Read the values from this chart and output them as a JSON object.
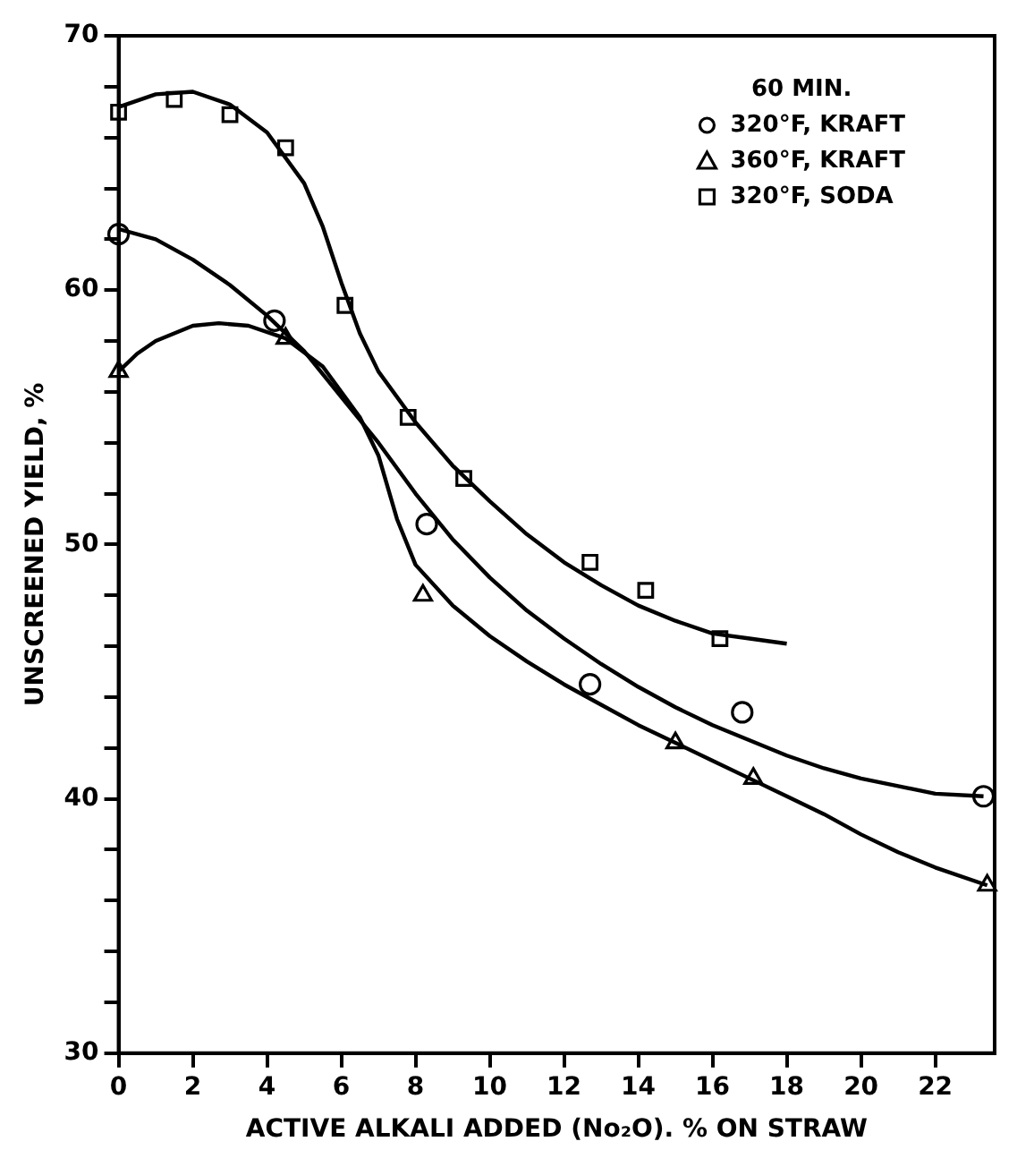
{
  "chart_data": {
    "type": "scatter",
    "xlabel": "ACTIVE ALKALI ADDED (No₂O). % ON STRAW",
    "ylabel": "UNSCREENED YIELD, %",
    "legend_title": "60 MIN.",
    "legend": "top right",
    "grid": false,
    "xlim": [
      0,
      23.6
    ],
    "xticks": [
      0,
      2,
      4,
      6,
      8,
      10,
      12,
      14,
      16,
      18,
      20,
      22
    ],
    "ylim": [
      30,
      70
    ],
    "yticks": [
      30,
      {
        "value": 32,
        "label": null
      },
      {
        "value": 34,
        "label": null
      },
      {
        "value": 36,
        "label": null
      },
      {
        "value": 38,
        "label": null
      },
      40,
      {
        "value": 42,
        "label": null
      },
      {
        "value": 44,
        "label": null
      },
      {
        "value": 46,
        "label": null
      },
      {
        "value": 48,
        "label": null
      },
      50,
      {
        "value": 52,
        "label": null
      },
      {
        "value": 54,
        "label": null
      },
      {
        "value": 56,
        "label": null
      },
      {
        "value": 58,
        "label": null
      },
      60,
      {
        "value": 62,
        "label": null
      },
      {
        "value": 64,
        "label": null
      },
      {
        "value": 66,
        "label": null
      },
      {
        "value": 68,
        "label": null
      },
      70
    ],
    "series": [
      {
        "type": "scatter",
        "name": "320°F, KRAFT",
        "color": "#000000",
        "marker": "circle",
        "x": [
          0,
          4.2,
          8.3,
          12.7,
          16.8,
          23.3
        ],
        "values": [
          62.2,
          58.8,
          50.8,
          44.5,
          43.4,
          40.1
        ]
      },
      {
        "type": "scatter",
        "name": "360°F, KRAFT",
        "color": "#000000",
        "marker": "triangle",
        "x": [
          0,
          4.5,
          8.2,
          15.0,
          17.1,
          23.4
        ],
        "values": [
          56.8,
          58.1,
          48.0,
          42.2,
          40.8,
          36.6
        ]
      },
      {
        "type": "scatter",
        "name": "320°F, SODA",
        "color": "#000000",
        "marker": "square",
        "x": [
          0,
          1.5,
          3.0,
          4.5,
          6.1,
          7.8,
          9.3,
          12.7,
          14.2,
          16.2
        ],
        "values": [
          67.0,
          67.5,
          66.9,
          65.6,
          59.4,
          55.0,
          52.6,
          49.3,
          48.2,
          46.3
        ]
      },
      {
        "type": "line",
        "color": "#000000",
        "marker": "none",
        "line_style": "solid",
        "x": [
          0,
          1,
          2,
          3,
          4,
          5,
          6,
          7,
          8,
          9,
          10,
          11,
          12,
          13,
          14,
          15,
          16,
          17,
          18,
          19,
          20,
          21,
          22,
          23.3
        ],
        "values": [
          62.4,
          62.0,
          61.2,
          60.2,
          59.0,
          57.6,
          55.8,
          54.0,
          52.0,
          50.2,
          48.7,
          47.4,
          46.3,
          45.3,
          44.4,
          43.6,
          42.9,
          42.3,
          41.7,
          41.2,
          40.8,
          40.5,
          40.2,
          40.1
        ]
      },
      {
        "type": "line",
        "color": "#000000",
        "marker": "none",
        "line_style": "solid",
        "x": [
          0,
          0.5,
          1,
          2,
          2.7,
          3.5,
          4.5,
          5.5,
          6.5,
          7,
          7.5,
          8,
          9,
          10,
          11,
          12,
          13,
          14,
          15,
          16,
          17,
          18,
          19,
          20,
          21,
          22,
          23.4
        ],
        "values": [
          56.8,
          57.5,
          58.0,
          58.6,
          58.7,
          58.6,
          58.1,
          57.0,
          55.0,
          53.5,
          51.0,
          49.2,
          47.6,
          46.4,
          45.4,
          44.5,
          43.7,
          42.9,
          42.2,
          41.5,
          40.8,
          40.1,
          39.4,
          38.6,
          37.9,
          37.3,
          36.6
        ]
      },
      {
        "type": "line",
        "color": "#000000",
        "marker": "none",
        "line_style": "solid",
        "x": [
          0,
          1,
          2,
          3,
          4,
          5,
          5.5,
          6,
          6.5,
          7,
          8,
          9,
          10,
          11,
          12,
          13,
          14,
          15,
          16,
          17,
          18
        ],
        "values": [
          67.2,
          67.7,
          67.8,
          67.3,
          66.2,
          64.2,
          62.5,
          60.3,
          58.3,
          56.8,
          54.8,
          53.1,
          51.7,
          50.4,
          49.3,
          48.4,
          47.6,
          47.0,
          46.5,
          46.3,
          46.1
        ]
      }
    ]
  }
}
